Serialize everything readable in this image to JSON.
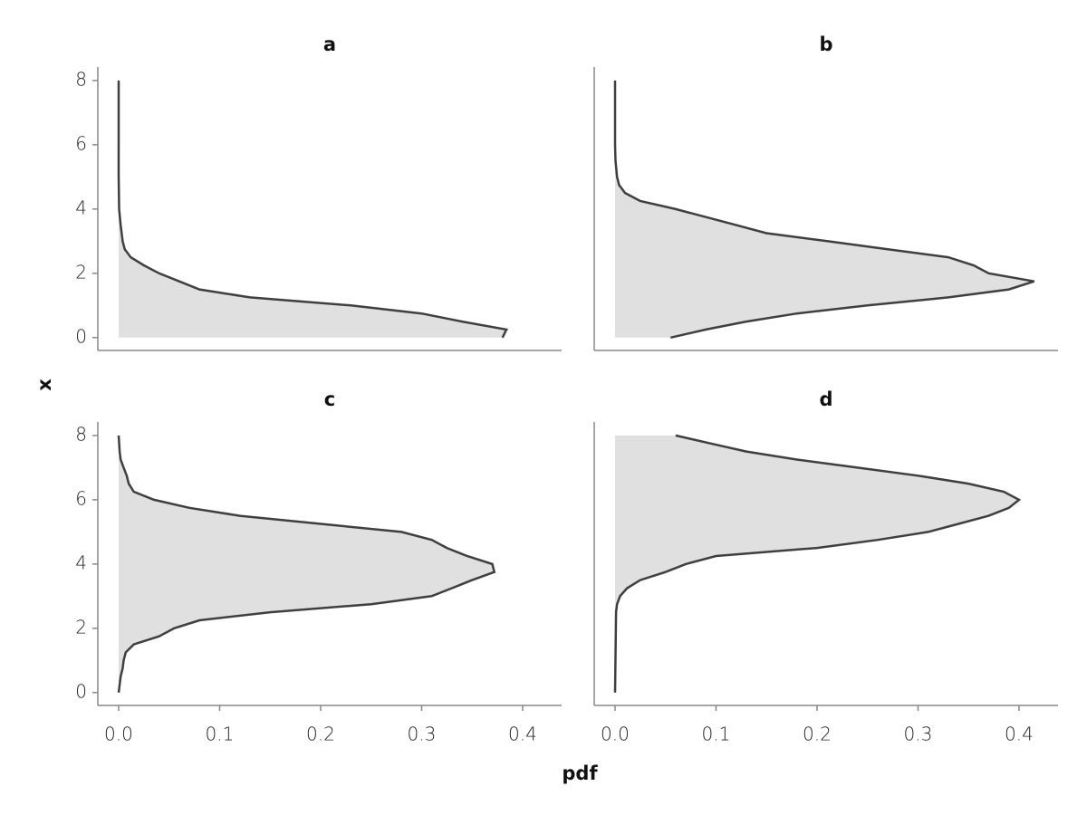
{
  "chart_data": {
    "type": "density",
    "xlabel": "pdf",
    "ylabel": "x",
    "xlim": [
      -0.0206,
      0.4386
    ],
    "ylim": [
      -0.4,
      8.42
    ],
    "xticks": [
      {
        "value": 0,
        "label": "0.0"
      },
      0.1,
      0.2,
      0.3,
      0.4
    ],
    "yticks": [
      0,
      2,
      4,
      6,
      8
    ],
    "color": "#3f3f3f",
    "fill": "#e0e0e0",
    "panels": [
      {
        "title": "a",
        "x": [
          0,
          0.25,
          0.5,
          0.75,
          1.0,
          1.25,
          1.5,
          1.75,
          2.0,
          2.25,
          2.5,
          2.75,
          3.0,
          3.5,
          4.0,
          5.0,
          6.0,
          7.0,
          8.0
        ],
        "values": [
          0.38,
          0.384,
          0.34,
          0.3,
          0.23,
          0.13,
          0.08,
          0.06,
          0.04,
          0.025,
          0.012,
          0.006,
          0.004,
          0.002,
          0.0005,
          0,
          0,
          0,
          0
        ]
      },
      {
        "title": "b",
        "x": [
          0,
          0.25,
          0.5,
          0.75,
          1.0,
          1.25,
          1.5,
          1.75,
          2.0,
          2.25,
          2.5,
          2.75,
          3.0,
          3.25,
          3.5,
          3.75,
          4.0,
          4.25,
          4.5,
          4.75,
          5.0,
          5.5,
          6.0,
          7.0,
          8.0
        ],
        "values": [
          0.055,
          0.09,
          0.13,
          0.18,
          0.25,
          0.33,
          0.39,
          0.415,
          0.37,
          0.355,
          0.33,
          0.27,
          0.21,
          0.15,
          0.12,
          0.09,
          0.06,
          0.025,
          0.01,
          0.004,
          0.002,
          0.0005,
          0,
          0,
          0
        ]
      },
      {
        "title": "c",
        "x": [
          0,
          0.5,
          0.75,
          1.0,
          1.25,
          1.5,
          1.75,
          2.0,
          2.25,
          2.5,
          2.75,
          3.0,
          3.25,
          3.5,
          3.75,
          4.0,
          4.25,
          4.5,
          4.75,
          5.0,
          5.25,
          5.5,
          5.75,
          6.0,
          6.25,
          6.5,
          6.75,
          7.0,
          7.25,
          7.5,
          8.0
        ],
        "values": [
          0,
          0.002,
          0.004,
          0.005,
          0.007,
          0.015,
          0.04,
          0.055,
          0.08,
          0.15,
          0.25,
          0.31,
          0.33,
          0.35,
          0.372,
          0.37,
          0.345,
          0.325,
          0.31,
          0.28,
          0.2,
          0.12,
          0.07,
          0.035,
          0.015,
          0.01,
          0.008,
          0.005,
          0.002,
          0.001,
          0
        ]
      },
      {
        "title": "d",
        "x": [
          0,
          2.5,
          2.75,
          3.0,
          3.25,
          3.5,
          3.75,
          4.0,
          4.25,
          4.5,
          4.75,
          5.0,
          5.25,
          5.5,
          5.75,
          6.0,
          6.25,
          6.5,
          6.75,
          7.0,
          7.25,
          7.5,
          7.75,
          8.0
        ],
        "values": [
          0,
          0.001,
          0.002,
          0.005,
          0.012,
          0.025,
          0.05,
          0.07,
          0.1,
          0.2,
          0.26,
          0.31,
          0.34,
          0.37,
          0.39,
          0.4,
          0.385,
          0.35,
          0.3,
          0.24,
          0.18,
          0.13,
          0.095,
          0.06
        ]
      }
    ]
  }
}
